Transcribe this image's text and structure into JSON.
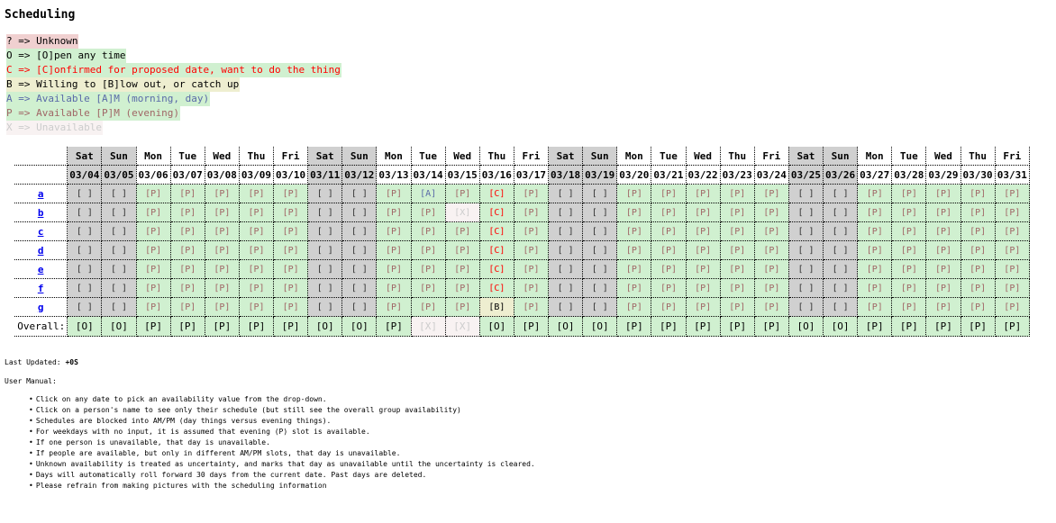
{
  "title": "Scheduling",
  "legend": [
    {
      "key": "u",
      "text": "? => Unknown"
    },
    {
      "key": "o",
      "text": "O => [O]pen any time"
    },
    {
      "key": "c",
      "text": "C => [C]onfirmed for proposed date, want to do the thing"
    },
    {
      "key": "b",
      "text": "B => Willing to [B]low out, or catch up"
    },
    {
      "key": "a",
      "text": "A => Available [A]M (morning, day)"
    },
    {
      "key": "p",
      "text": "P => Available [P]M (evening)"
    },
    {
      "key": "x",
      "text": "X => Unavailable"
    }
  ],
  "colors": {
    "open": "#d0f0d0",
    "weekend": "#d0d0d0",
    "unknown": "#f0d0d0",
    "blowout": "#eeeed0",
    "unavailable": "#f8f2f2",
    "confirmed": "#ff0000"
  },
  "schedule": {
    "columns": [
      {
        "day": "Sat",
        "date": "03/04",
        "weekend": true
      },
      {
        "day": "Sun",
        "date": "03/05",
        "weekend": true
      },
      {
        "day": "Mon",
        "date": "03/06"
      },
      {
        "day": "Tue",
        "date": "03/07"
      },
      {
        "day": "Wed",
        "date": "03/08"
      },
      {
        "day": "Thu",
        "date": "03/09"
      },
      {
        "day": "Fri",
        "date": "03/10"
      },
      {
        "day": "Sat",
        "date": "03/11",
        "weekend": true
      },
      {
        "day": "Sun",
        "date": "03/12",
        "weekend": true
      },
      {
        "day": "Mon",
        "date": "03/13"
      },
      {
        "day": "Tue",
        "date": "03/14"
      },
      {
        "day": "Wed",
        "date": "03/15"
      },
      {
        "day": "Thu",
        "date": "03/16"
      },
      {
        "day": "Fri",
        "date": "03/17"
      },
      {
        "day": "Sat",
        "date": "03/18",
        "weekend": true
      },
      {
        "day": "Sun",
        "date": "03/19",
        "weekend": true
      },
      {
        "day": "Mon",
        "date": "03/20"
      },
      {
        "day": "Tue",
        "date": "03/21"
      },
      {
        "day": "Wed",
        "date": "03/22"
      },
      {
        "day": "Thu",
        "date": "03/23"
      },
      {
        "day": "Fri",
        "date": "03/24"
      },
      {
        "day": "Sat",
        "date": "03/25",
        "weekend": true
      },
      {
        "day": "Sun",
        "date": "03/26",
        "weekend": true
      },
      {
        "day": "Mon",
        "date": "03/27"
      },
      {
        "day": "Tue",
        "date": "03/28"
      },
      {
        "day": "Wed",
        "date": "03/29"
      },
      {
        "day": "Thu",
        "date": "03/30"
      },
      {
        "day": "Fri",
        "date": "03/31"
      }
    ],
    "people": [
      {
        "name": "a",
        "cells": [
          "[ ]",
          "[ ]",
          "[P]",
          "[P]",
          "[P]",
          "[P]",
          "[P]",
          "[ ]",
          "[ ]",
          "[P]",
          "[A]",
          "[P]",
          "[C]",
          "[P]",
          "[ ]",
          "[ ]",
          "[P]",
          "[P]",
          "[P]",
          "[P]",
          "[P]",
          "[ ]",
          "[ ]",
          "[P]",
          "[P]",
          "[P]",
          "[P]",
          "[P]"
        ]
      },
      {
        "name": "b",
        "cells": [
          "[ ]",
          "[ ]",
          "[P]",
          "[P]",
          "[P]",
          "[P]",
          "[P]",
          "[ ]",
          "[ ]",
          "[P]",
          "[P]",
          "[X]",
          "[C]",
          "[P]",
          "[ ]",
          "[ ]",
          "[P]",
          "[P]",
          "[P]",
          "[P]",
          "[P]",
          "[ ]",
          "[ ]",
          "[P]",
          "[P]",
          "[P]",
          "[P]",
          "[P]"
        ]
      },
      {
        "name": "c",
        "cells": [
          "[ ]",
          "[ ]",
          "[P]",
          "[P]",
          "[P]",
          "[P]",
          "[P]",
          "[ ]",
          "[ ]",
          "[P]",
          "[P]",
          "[P]",
          "[C]",
          "[P]",
          "[ ]",
          "[ ]",
          "[P]",
          "[P]",
          "[P]",
          "[P]",
          "[P]",
          "[ ]",
          "[ ]",
          "[P]",
          "[P]",
          "[P]",
          "[P]",
          "[P]"
        ]
      },
      {
        "name": "d",
        "cells": [
          "[ ]",
          "[ ]",
          "[P]",
          "[P]",
          "[P]",
          "[P]",
          "[P]",
          "[ ]",
          "[ ]",
          "[P]",
          "[P]",
          "[P]",
          "[C]",
          "[P]",
          "[ ]",
          "[ ]",
          "[P]",
          "[P]",
          "[P]",
          "[P]",
          "[P]",
          "[ ]",
          "[ ]",
          "[P]",
          "[P]",
          "[P]",
          "[P]",
          "[P]"
        ]
      },
      {
        "name": "e",
        "cells": [
          "[ ]",
          "[ ]",
          "[P]",
          "[P]",
          "[P]",
          "[P]",
          "[P]",
          "[ ]",
          "[ ]",
          "[P]",
          "[P]",
          "[P]",
          "[C]",
          "[P]",
          "[ ]",
          "[ ]",
          "[P]",
          "[P]",
          "[P]",
          "[P]",
          "[P]",
          "[ ]",
          "[ ]",
          "[P]",
          "[P]",
          "[P]",
          "[P]",
          "[P]"
        ]
      },
      {
        "name": "f",
        "cells": [
          "[ ]",
          "[ ]",
          "[P]",
          "[P]",
          "[P]",
          "[P]",
          "[P]",
          "[ ]",
          "[ ]",
          "[P]",
          "[P]",
          "[P]",
          "[C]",
          "[P]",
          "[ ]",
          "[ ]",
          "[P]",
          "[P]",
          "[P]",
          "[P]",
          "[P]",
          "[ ]",
          "[ ]",
          "[P]",
          "[P]",
          "[P]",
          "[P]",
          "[P]"
        ]
      },
      {
        "name": "g",
        "cells": [
          "[ ]",
          "[ ]",
          "[P]",
          "[P]",
          "[P]",
          "[P]",
          "[P]",
          "[ ]",
          "[ ]",
          "[P]",
          "[P]",
          "[P]",
          "[B]",
          "[P]",
          "[ ]",
          "[ ]",
          "[P]",
          "[P]",
          "[P]",
          "[P]",
          "[P]",
          "[ ]",
          "[ ]",
          "[P]",
          "[P]",
          "[P]",
          "[P]",
          "[P]"
        ]
      }
    ],
    "overall_label": "Overall:",
    "overall": [
      "[O]",
      "[O]",
      "[P]",
      "[P]",
      "[P]",
      "[P]",
      "[P]",
      "[O]",
      "[O]",
      "[P]",
      "[X]",
      "[X]",
      "[O]",
      "[P]",
      "[O]",
      "[O]",
      "[P]",
      "[P]",
      "[P]",
      "[P]",
      "[P]",
      "[O]",
      "[O]",
      "[P]",
      "[P]",
      "[P]",
      "[P]",
      "[P]"
    ]
  },
  "footer": {
    "last_updated_label": "Last Updated:",
    "last_updated_value": "+0S",
    "manual_label": "User Manual:",
    "manual": [
      "Click on any date to pick an availability value from the drop-down.",
      "Click on a person's name to see only their schedule (but still see the overall group availability)",
      "Schedules are blocked into AM/PM (day things versus evening things).",
      "For weekdays with no input, it is assumed that evening (P) slot is available.",
      "If one person is unavailable, that day is unavailable.",
      "If people are available, but only in different AM/PM slots, that day is unavailable.",
      "Unknown availability is treated as uncertainty, and marks that day as unavailable until the uncertainty is cleared.",
      "Days will automatically roll forward 30 days from the current date. Past days are deleted.",
      "Please refrain from making pictures with the scheduling information"
    ]
  }
}
